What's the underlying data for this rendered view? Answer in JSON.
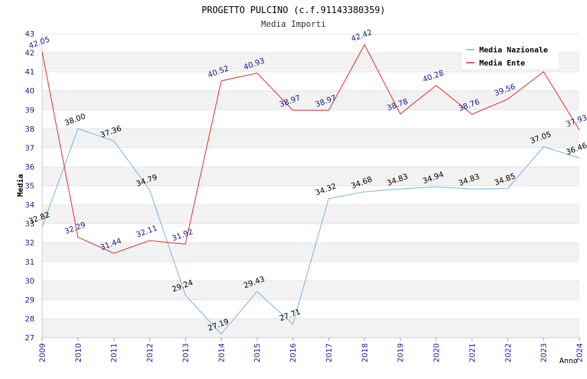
{
  "chart_data": {
    "type": "line",
    "title": "PROGETTO PULCINO (c.f.91143380359)",
    "subtitle": "Media Importi",
    "xlabel": "Anno",
    "ylabel": "Media",
    "ylim": [
      27,
      43
    ],
    "y_ticks": [
      "27",
      "28",
      "29",
      "30",
      "31",
      "32",
      "33",
      "34",
      "35",
      "36",
      "37",
      "38",
      "39",
      "40",
      "41",
      "42",
      "43"
    ],
    "categories": [
      "2009",
      "2010",
      "2011",
      "2012",
      "2013",
      "2014",
      "2015",
      "2016",
      "2017",
      "2018",
      "2019",
      "2020",
      "2021",
      "2022",
      "2023",
      "2024"
    ],
    "grid": true,
    "legend_position": "top-right",
    "series": [
      {
        "name": "Media Nazionale",
        "color": "#6aaee8",
        "label_color": "#000000",
        "values": [
          32.82,
          38.0,
          37.36,
          34.79,
          29.24,
          27.19,
          29.43,
          27.71,
          34.32,
          34.68,
          34.83,
          34.94,
          34.83,
          34.85,
          37.05,
          36.46
        ]
      },
      {
        "name": "Media Ente",
        "color": "#e41a1c",
        "label_color": "#1a1a8c",
        "values": [
          42.05,
          32.29,
          31.44,
          32.11,
          31.92,
          40.52,
          40.93,
          38.97,
          38.97,
          42.42,
          38.78,
          40.28,
          38.76,
          39.56,
          41.0,
          37.93
        ]
      }
    ],
    "data_labels": [
      [
        "32.82",
        "38.00",
        "37.36",
        "34.79",
        "29.24",
        "27.19",
        "29.43",
        "27.71",
        "34.32",
        "34.68",
        "34.83",
        "34.94",
        "34.83",
        "34.85",
        "37.05",
        "36.46"
      ],
      [
        "42.05",
        "32.29",
        "31.44",
        "32.11",
        "31.92",
        "40.52",
        "40.93",
        "38.97",
        "38.97",
        "42.42",
        "38.78",
        "40.28",
        "38.76",
        "39.56",
        "",
        "37.93"
      ]
    ]
  }
}
